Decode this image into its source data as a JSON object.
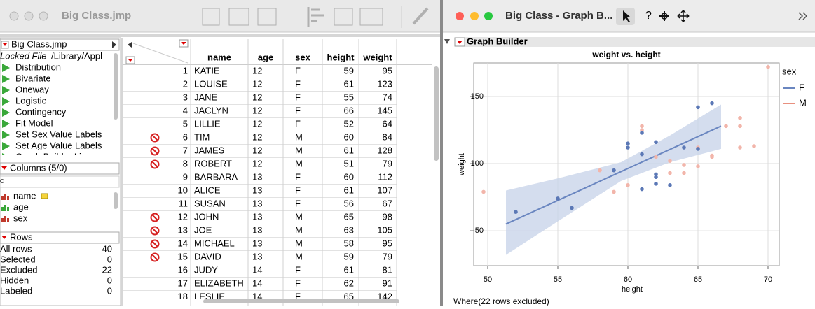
{
  "left_window": {
    "title": "Big Class.jmp"
  },
  "side_panel": {
    "table_name": "Big Class.jmp",
    "locked_label": "Locked File",
    "locked_path": "/Library/Appl",
    "scripts": [
      "Distribution",
      "Bivariate",
      "Oneway",
      "Logistic",
      "Contingency",
      "Fit Model",
      "Set Sex Value Labels",
      "Set Age Value Labels",
      "Graph Builder Line"
    ],
    "columns_header": "Columns (5/0)",
    "columns": [
      "name",
      "age",
      "sex"
    ],
    "rows_header": "Rows",
    "row_states": [
      {
        "label": "All rows",
        "value": 40
      },
      {
        "label": "Selected",
        "value": 0
      },
      {
        "label": "Excluded",
        "value": 22
      },
      {
        "label": "Hidden",
        "value": 0
      },
      {
        "label": "Labeled",
        "value": 0
      }
    ]
  },
  "table": {
    "headers": [
      "name",
      "age",
      "sex",
      "height",
      "weight"
    ],
    "rows": [
      [
        1,
        "KATIE",
        12,
        "F",
        59,
        95
      ],
      [
        2,
        "LOUISE",
        12,
        "F",
        61,
        123
      ],
      [
        3,
        "JANE",
        12,
        "F",
        55,
        74
      ],
      [
        4,
        "JACLYN",
        12,
        "F",
        66,
        145
      ],
      [
        5,
        "LILLIE",
        12,
        "F",
        52,
        64
      ],
      [
        6,
        "TIM",
        12,
        "M",
        60,
        84
      ],
      [
        7,
        "JAMES",
        12,
        "M",
        61,
        128
      ],
      [
        8,
        "ROBERT",
        12,
        "M",
        51,
        79
      ],
      [
        9,
        "BARBARA",
        13,
        "F",
        60,
        112
      ],
      [
        10,
        "ALICE",
        13,
        "F",
        61,
        107
      ],
      [
        11,
        "SUSAN",
        13,
        "F",
        56,
        67
      ],
      [
        12,
        "JOHN",
        13,
        "M",
        65,
        98
      ],
      [
        13,
        "JOE",
        13,
        "M",
        63,
        105
      ],
      [
        14,
        "MICHAEL",
        13,
        "M",
        58,
        95
      ],
      [
        15,
        "DAVID",
        13,
        "M",
        59,
        79
      ],
      [
        16,
        "JUDY",
        14,
        "F",
        61,
        81
      ],
      [
        17,
        "ELIZABETH",
        14,
        "F",
        62,
        91
      ],
      [
        18,
        "LESLIE",
        14,
        "F",
        65,
        142
      ]
    ],
    "excluded_rows": [
      6,
      7,
      8,
      12,
      13,
      14,
      15
    ]
  },
  "right_window": {
    "title": "Big Class - Graph B...",
    "outline": "Graph Builder",
    "footer": "Where(22 rows excluded)"
  },
  "chart_data": {
    "type": "scatter",
    "title": "weight vs. height",
    "x_label": "height",
    "y_label": "weight",
    "xlim": [
      49,
      70.8
    ],
    "ylim": [
      24,
      175
    ],
    "xticks": [
      50,
      55,
      60,
      65,
      70
    ],
    "yticks": [
      50,
      100,
      150
    ],
    "grid": true,
    "legend_title": "sex",
    "series": [
      {
        "name": "F",
        "color": "#6a86c0",
        "point_color": "#5b78b6",
        "x": [
          52,
          55,
          56,
          59,
          60,
          60,
          61,
          61,
          61,
          62,
          62,
          62,
          62,
          63,
          64,
          65,
          65,
          66
        ],
        "values": [
          64,
          74,
          67,
          95,
          115,
          112,
          123,
          107,
          81,
          116,
          92,
          90,
          85,
          84,
          112,
          142,
          111,
          145
        ]
      },
      {
        "name": "M",
        "color": "#e8907f",
        "point_color": "#f2b5aa",
        "x": [
          49.7,
          58,
          59,
          60,
          61,
          61,
          62,
          63,
          63,
          64,
          64,
          65,
          65,
          66,
          66,
          67,
          68,
          68,
          68,
          69,
          70
        ],
        "values": [
          79,
          95,
          79,
          84,
          128,
          125,
          105,
          93,
          102,
          99,
          93,
          98,
          112,
          106,
          105,
          128,
          134,
          128,
          112,
          113,
          172
        ]
      }
    ],
    "fit": {
      "color": "#6a86c0",
      "band_color": "#c9d4ea",
      "x": [
        51.3,
        55,
        59.5,
        63,
        66.65
      ],
      "values": [
        55,
        72.6,
        94,
        110.6,
        128
      ],
      "lower": [
        32,
        57,
        87,
        101,
        111
      ],
      "upper": [
        80,
        89,
        101,
        121,
        144
      ]
    }
  }
}
